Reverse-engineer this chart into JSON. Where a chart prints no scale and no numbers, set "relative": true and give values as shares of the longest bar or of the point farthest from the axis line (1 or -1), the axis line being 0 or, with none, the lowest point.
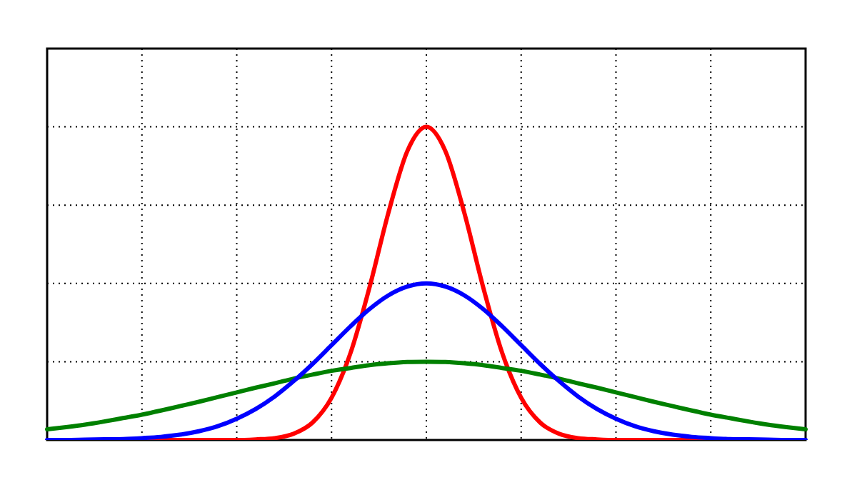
{
  "chart_data": {
    "type": "line",
    "relative": true,
    "grid": true,
    "legend": false,
    "marker": "none",
    "line_style": "solid",
    "categories": [
      null,
      null,
      null,
      null,
      null,
      null,
      null,
      null,
      null,
      null,
      null,
      null,
      null,
      null,
      null,
      null,
      null,
      null,
      null,
      null,
      null,
      null,
      null,
      null,
      null,
      null,
      null,
      null,
      null,
      null,
      null,
      null,
      null,
      null,
      null,
      null,
      null,
      null,
      null,
      null,
      null
    ],
    "series": [
      {
        "color": "#0000ff",
        "values": [
          0,
          0,
          0.001,
          0.002,
          0.003,
          0.006,
          0.01,
          0.017,
          0.028,
          0.044,
          0.068,
          0.099,
          0.139,
          0.188,
          0.243,
          0.303,
          0.363,
          0.418,
          0.462,
          0.49,
          0.5,
          0.49,
          0.462,
          0.418,
          0.363,
          0.303,
          0.243,
          0.188,
          0.139,
          0.099,
          0.068,
          0.044,
          0.028,
          0.017,
          0.01,
          0.006,
          0.003,
          0.002,
          0.001,
          0,
          0
        ]
      },
      {
        "color": "#008000",
        "values": [
          0.034,
          0.041,
          0.049,
          0.059,
          0.07,
          0.081,
          0.094,
          0.108,
          0.122,
          0.137,
          0.152,
          0.167,
          0.181,
          0.196,
          0.209,
          0.221,
          0.23,
          0.239,
          0.245,
          0.249,
          0.25,
          0.249,
          0.245,
          0.239,
          0.23,
          0.221,
          0.209,
          0.196,
          0.181,
          0.167,
          0.152,
          0.137,
          0.122,
          0.108,
          0.094,
          0.081,
          0.07,
          0.059,
          0.049,
          0.041,
          0.034
        ]
      },
      {
        "color": "#ff0000",
        "values": [
          null,
          null,
          null,
          null,
          0,
          0,
          0,
          0,
          0,
          0,
          0,
          0.002,
          0.006,
          0.02,
          0.056,
          0.135,
          0.278,
          0.487,
          0.726,
          0.923,
          1,
          0.923,
          0.726,
          0.487,
          0.278,
          0.135,
          0.056,
          0.02,
          0.006,
          0.002,
          0,
          0,
          0,
          0,
          0,
          0,
          0,
          null,
          null,
          null,
          null
        ]
      }
    ]
  }
}
